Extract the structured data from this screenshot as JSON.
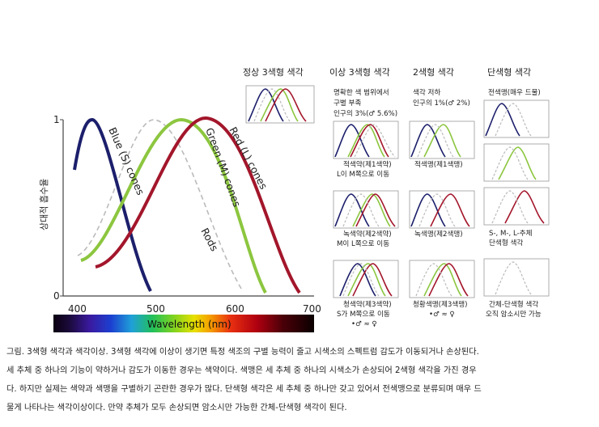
{
  "main_chart": {
    "y_axis_label": "상대적 흡수율",
    "y_ticks": [
      "0",
      "1"
    ],
    "x_ticks": [
      "400",
      "500",
      "600",
      "700"
    ],
    "spectrum_label": "Wavelength (nm)",
    "curve_labels": {
      "blue": "Blue (S) cones",
      "green": "Green (M) cones",
      "red": "Red (L) cones",
      "rods": "Rods"
    },
    "colors": {
      "blue": "#1c1f6b",
      "green": "#8cc63f",
      "red": "#a3162b",
      "rods": "#bbbbbb"
    }
  },
  "column_headers": {
    "normal": "정상 3색형 색각",
    "anomalous": "이상 3색형 색각",
    "dichromat": "2색형 색각",
    "monochromat": "단색형 색각"
  },
  "notes": {
    "anomalous": [
      "명확한 색 범위에서",
      "구별 부족",
      "인구의 3%(♂ 5.6%)"
    ],
    "dichromat": [
      "색각 저하",
      "인구의 1%(♂ 2%)"
    ],
    "monochromat": "전색맹(매우 드물)"
  },
  "cell_labels": {
    "protanomaly": [
      "적색약(제1색약)",
      "L이 M쪽으로 이동"
    ],
    "protanopia": "적색맹(제1색맹)",
    "deuteranomaly": [
      "녹색약(제2색약)",
      "M이 L쪽으로 이동"
    ],
    "deuteranopia": "녹색맹(제2색맹)",
    "cone_mono": [
      "S-, M-, L-추체",
      "단색형 색각"
    ],
    "tritanomaly": [
      "청색약(제3색약)",
      "S가 M쪽으로 이동",
      "•♂ ≈ ♀"
    ],
    "tritanopia": [
      "청황색맹(제3색맹)",
      "•♂ ≈ ♀"
    ],
    "rod_mono": [
      "간체-단색형 색각",
      "오직 암소시만 가능"
    ]
  },
  "caption_lines": [
    "그림. 3색형 색각과 색각이상. 3색형 색각에 이상이 생기면 특정 색조의 구별 능력이 줄고 시색소의 스펙트럼 감도가 이동되거나 손상된다.",
    "세 추체 중 하나의 기능이 약하거나 감도가 이동한 경우는 색약이다. 색맹은 세 추체 중 하나의 시색소가 손상되어 2색형 색각을 가진 경우",
    "다. 하지만 실제는 색약과 색맹을 구별하기 곤란한 경우가 많다. 단색형 색각은 세 추체 중 하나만 갖고 있어서 전색맹으로 분류되며 매우 드",
    "물게 나타나는 색각이상이다. 만약 추체가 모두 손상되면 암소시만 가능한 간체-단색형 색각이 된다."
  ]
}
